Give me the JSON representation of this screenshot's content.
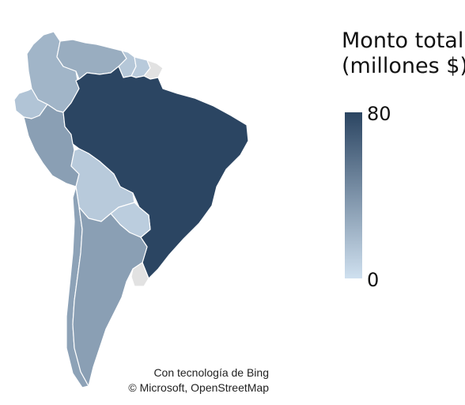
{
  "legend": {
    "title_line1": "Monto total",
    "title_line2": "(millones $)",
    "max_label": "80",
    "min_label": "0",
    "color_low": "#cfe0ef",
    "color_high": "#2b4562",
    "range": [
      0,
      80
    ]
  },
  "attribution": {
    "line1": "Con tecnología de Bing",
    "line2": "© Microsoft, OpenStreetMap"
  },
  "colors": {
    "no_data": "#e2e2e2",
    "border": "#ffffff"
  },
  "regions": [
    {
      "id": "colombia",
      "level": 0.28
    },
    {
      "id": "venezuela",
      "level": 0.33
    },
    {
      "id": "guyana",
      "level": 0.16
    },
    {
      "id": "suriname",
      "level": 0.14
    },
    {
      "id": "french-guiana",
      "level": null
    },
    {
      "id": "ecuador",
      "level": 0.18
    },
    {
      "id": "peru",
      "level": 0.42
    },
    {
      "id": "brazil",
      "level": 1.0
    },
    {
      "id": "bolivia",
      "level": 0.14
    },
    {
      "id": "paraguay",
      "level": 0.12
    },
    {
      "id": "chile",
      "level": 0.4
    },
    {
      "id": "argentina",
      "level": 0.42
    },
    {
      "id": "uruguay",
      "level": null
    }
  ]
}
